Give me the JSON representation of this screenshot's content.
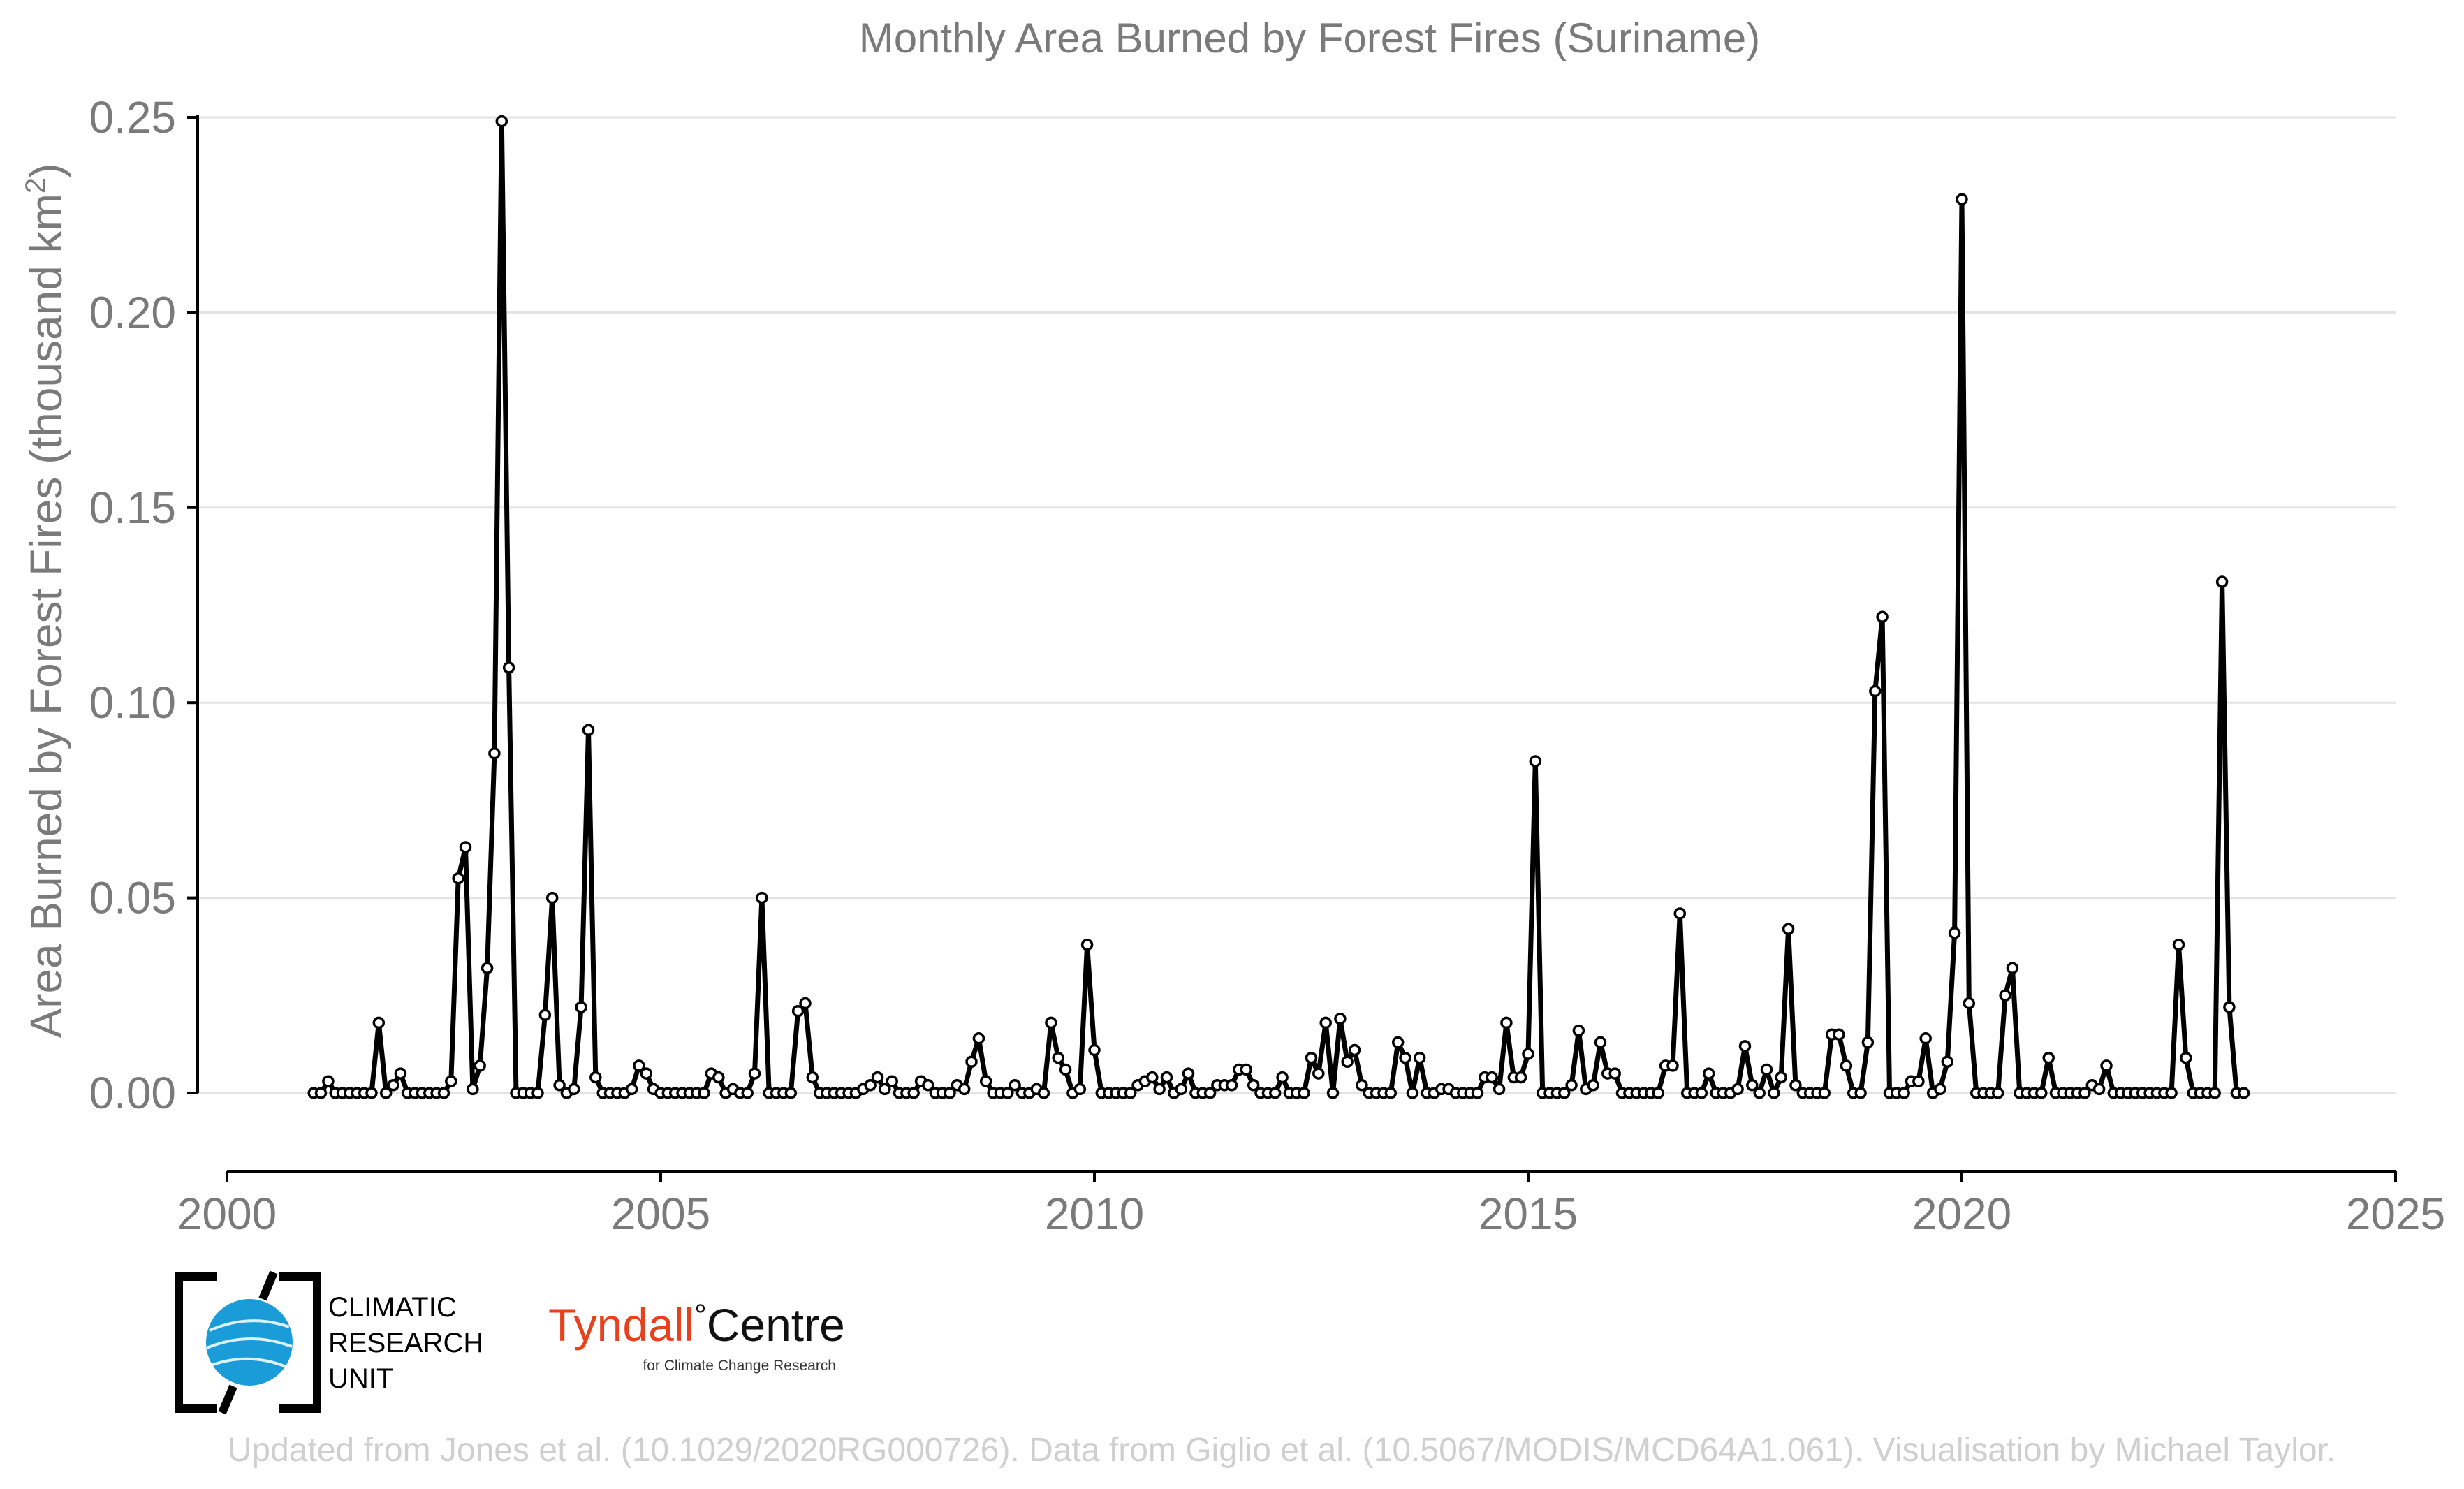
{
  "chart_data": {
    "type": "line",
    "title": "Monthly Area Burned by Forest Fires (Suriname)",
    "ylabel": "Area Burned by Forest Fires (thousand km",
    "ylabel_sup": "2",
    "ylabel_close": ")",
    "xlabel": "",
    "xlim": [
      2000,
      2025
    ],
    "ylim": [
      -0.015,
      0.25
    ],
    "x_ticks": [
      2000,
      2005,
      2010,
      2015,
      2020,
      2025
    ],
    "x_tick_labels": [
      "2000",
      "2005",
      "2010",
      "2015",
      "2020",
      "2025"
    ],
    "y_ticks": [
      0.0,
      0.05,
      0.1,
      0.15,
      0.2,
      0.25
    ],
    "y_tick_labels": [
      "0.00",
      "0.05",
      "0.10",
      "0.15",
      "0.20",
      "0.25"
    ],
    "grid": "horizontal",
    "line_color": "#000000",
    "marker": "hollow-circle",
    "series": [
      {
        "start": 2001.0,
        "step": 0.08333333,
        "values": [
          0,
          0,
          0.003,
          0,
          0,
          0,
          0,
          0,
          0,
          0.018,
          0,
          0.002,
          0.005,
          0,
          0,
          0,
          0,
          0,
          0,
          0.003,
          0.055,
          0.063,
          0.001,
          0.007,
          0.032,
          0.087,
          0.249,
          0.109,
          0,
          0,
          0,
          0,
          0.02,
          0.05,
          0.002,
          0,
          0.001,
          0.022,
          0.093,
          0.004,
          0,
          0,
          0,
          0,
          0.001,
          0.007,
          0.005,
          0.001,
          0,
          0,
          0,
          0,
          0,
          0,
          0,
          0.005,
          0.004,
          0,
          0.001,
          0,
          0,
          0.005,
          0.05,
          0,
          0,
          0,
          0,
          0.021,
          0.023,
          0.004,
          0,
          0,
          0,
          0,
          0,
          0,
          0.001,
          0.002,
          0.004,
          0.001,
          0.003,
          0,
          0,
          0,
          0.003,
          0.002,
          0,
          0,
          0,
          0.002,
          0.001,
          0.008,
          0.014,
          0.003,
          0,
          0,
          0,
          0.002,
          0,
          0,
          0.001,
          0,
          0.018,
          0.009,
          0.006,
          0,
          0.001,
          0.038,
          0.011,
          0,
          0,
          0,
          0,
          0,
          0.002,
          0.003,
          0.004,
          0.001,
          0.004,
          0,
          0.001,
          0.005,
          0,
          0,
          0,
          0.002,
          0.002,
          0.002,
          0.006,
          0.006,
          0.002,
          0,
          0,
          0,
          0.004,
          0,
          0,
          0,
          0.009,
          0.005,
          0.018,
          0,
          0.019,
          0.008,
          0.011,
          0.002,
          0,
          0,
          0,
          0,
          0.013,
          0.009,
          0,
          0.009,
          0,
          0,
          0.001,
          0.001,
          0,
          0,
          0,
          0,
          0.004,
          0.004,
          0.001,
          0.018,
          0.004,
          0.004,
          0.01,
          0.085,
          0,
          0,
          0,
          0,
          0.002,
          0.016,
          0.001,
          0.002,
          0.013,
          0.005,
          0.005,
          0,
          0,
          0,
          0,
          0,
          0,
          0.007,
          0.007,
          0.046,
          0,
          0,
          0,
          0.005,
          0,
          0,
          0,
          0.001,
          0.012,
          0.002,
          0,
          0.006,
          0,
          0.004,
          0.042,
          0.002,
          0,
          0,
          0,
          0,
          0.015,
          0.015,
          0.007,
          0,
          0,
          0.013,
          0.103,
          0.122,
          0,
          0,
          0,
          0.003,
          0.003,
          0.014,
          0,
          0.001,
          0.008,
          0.041,
          0.229,
          0.023,
          0,
          0,
          0,
          0,
          0.025,
          0.032,
          0,
          0,
          0,
          0,
          0.009,
          0,
          0,
          0,
          0,
          0,
          0.002,
          0.001,
          0.007,
          0,
          0,
          0,
          0,
          0,
          0,
          0,
          0,
          0,
          0.038,
          0.009,
          0,
          0,
          0,
          0,
          0.131,
          0.022,
          0,
          0
        ]
      }
    ]
  },
  "logos": {
    "cru": {
      "line1": "CLIMATIC",
      "line2": "RESEARCH",
      "line3": "UNIT",
      "globe_color": "#1a9cd8"
    },
    "tyndall": {
      "name_part1": "Tyndall",
      "degree": "°",
      "name_part2": "Centre",
      "subtitle": "for Climate Change Research",
      "red": "#e8401c"
    }
  },
  "credit": "Updated from Jones et al. (10.1029/2020RG000726). Data from Giglio et al. (10.5067/MODIS/MCD64A1.061). Visualisation by Michael Taylor."
}
